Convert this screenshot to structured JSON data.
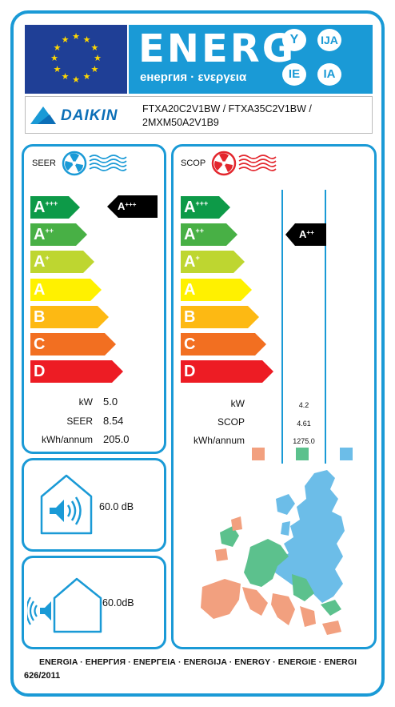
{
  "header": {
    "energy_word": "ENERG",
    "energy_subtitle": "енергия · ενεργεια",
    "language_suffixes": [
      "Y",
      "IJA",
      "IE",
      "IA"
    ]
  },
  "supplier": {
    "brand": "DAIKIN",
    "models_line1": "FTXA20C2V1BW / FTXA35C2V1BW /",
    "models_line2": "2MXM50A2V1B9"
  },
  "scale_labels": [
    {
      "base": "A",
      "sup": "+++",
      "color": "#0d9a48"
    },
    {
      "base": "A",
      "sup": "++",
      "color": "#48b045"
    },
    {
      "base": "A",
      "sup": "+",
      "color": "#bed630"
    },
    {
      "base": "A",
      "sup": "",
      "color": "#fff100"
    },
    {
      "base": "B",
      "sup": "",
      "color": "#fdb913"
    },
    {
      "base": "C",
      "sup": "",
      "color": "#f26f21"
    },
    {
      "base": "D",
      "sup": "",
      "color": "#ed1c24"
    }
  ],
  "cooling": {
    "title": "SEER",
    "class_base": "A",
    "class_sup": "+++",
    "kw_label": "kW",
    "kw_value": "5.0",
    "seer_label": "SEER",
    "seer_value": "8.54",
    "annual_label": "kWh/annum",
    "annual_value": "205.0"
  },
  "heating": {
    "title": "SCOP",
    "class_base": "A",
    "class_sup": "++",
    "kw_label": "kW",
    "kw_value": "4.2",
    "scop_label": "SCOP",
    "scop_value": "4.61",
    "annual_label": "kWh/annum",
    "annual_value": "1275.0",
    "climate_colors": {
      "warmer": "#f2a07f",
      "average": "#5cc18d",
      "colder": "#6cbde8"
    }
  },
  "noise": {
    "indoor_value": "60.0 dB",
    "outdoor_value": "60.0dB"
  },
  "footer": {
    "languages": "ENERGIA · ЕНЕРГИЯ · ΕΝΕΡΓΕΙΑ · ENERGIJA · ENERGY · ENERGIE · ENERGI",
    "regulation": "626/2011"
  },
  "colors": {
    "accent_blue": "#1a9ad6",
    "eu_blue": "#1f3f96",
    "eu_star": "#ffd800",
    "indicator_black": "#000000",
    "brand_blue": "#0c6fb7",
    "fan_cool": "#1a9ad6",
    "fan_heat": "#e3262d"
  },
  "icons": {
    "eu_flag": "eu-flag-icon",
    "cooling_fan": "fan-cooling-icon",
    "heating_fan": "fan-heating-icon",
    "indoor_noise": "house-speaker-icon",
    "outdoor_noise": "house-outdoor-sound-icon",
    "map": "europe-climate-map"
  }
}
